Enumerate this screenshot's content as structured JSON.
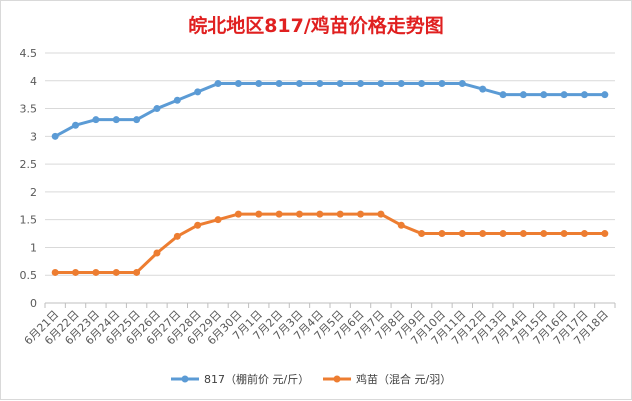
{
  "chart_data": {
    "type": "line",
    "title": "皖北地区817/鸡苗价格走势图",
    "categories": [
      "6月21日",
      "6月22日",
      "6月23日",
      "6月24日",
      "6月25日",
      "6月26日",
      "6月27日",
      "6月28日",
      "6月29日",
      "6月30日",
      "7月1日",
      "7月2日",
      "7月3日",
      "7月4日",
      "7月5日",
      "7月6日",
      "7月7日",
      "7月8日",
      "7月9日",
      "7月10日",
      "7月11日",
      "7月12日",
      "7月13日",
      "7月14日",
      "7月15日",
      "7月16日",
      "7月17日",
      "7月18日"
    ],
    "ylim": [
      0,
      4.5
    ],
    "yticks": [
      "0",
      "0.5",
      "1",
      "1.5",
      "2",
      "2.5",
      "3",
      "3.5",
      "4",
      "4.5"
    ],
    "grid": true,
    "legend_position": "bottom",
    "series": [
      {
        "name": "817（棚前价 元/斤）",
        "color": "#5b9bd5",
        "values": [
          3.0,
          3.2,
          3.3,
          3.3,
          3.3,
          3.5,
          3.65,
          3.8,
          3.95,
          3.95,
          3.95,
          3.95,
          3.95,
          3.95,
          3.95,
          3.95,
          3.95,
          3.95,
          3.95,
          3.95,
          3.95,
          3.85,
          3.75,
          3.75,
          3.75,
          3.75,
          3.75,
          3.75
        ]
      },
      {
        "name": "鸡苗（混合 元/羽）",
        "color": "#ed7d31",
        "values": [
          0.55,
          0.55,
          0.55,
          0.55,
          0.55,
          0.9,
          1.2,
          1.4,
          1.5,
          1.6,
          1.6,
          1.6,
          1.6,
          1.6,
          1.6,
          1.6,
          1.6,
          1.4,
          1.25,
          1.25,
          1.25,
          1.25,
          1.25,
          1.25,
          1.25,
          1.25,
          1.25,
          1.25
        ]
      }
    ]
  }
}
